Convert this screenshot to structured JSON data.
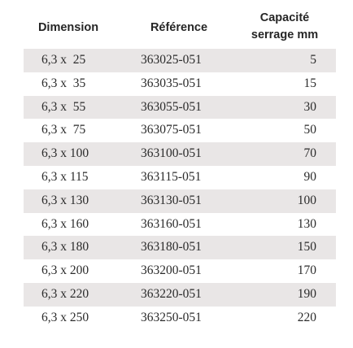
{
  "table": {
    "headers": {
      "dimension": "Dimension",
      "reference": "Référence",
      "capacity_line1": "Capacité",
      "capacity_line2": "serrage mm"
    },
    "rows": [
      {
        "dimension": "6,3 x  25",
        "reference": "363025-051",
        "capacity": "5"
      },
      {
        "dimension": "6,3 x  35",
        "reference": "363035-051",
        "capacity": "15"
      },
      {
        "dimension": "6,3 x  55",
        "reference": "363055-051",
        "capacity": "30"
      },
      {
        "dimension": "6,3 x  75",
        "reference": "363075-051",
        "capacity": "50"
      },
      {
        "dimension": "6,3 x 100",
        "reference": "363100-051",
        "capacity": "70"
      },
      {
        "dimension": "6,3 x 115",
        "reference": "363115-051",
        "capacity": "90"
      },
      {
        "dimension": "6,3 x 130",
        "reference": "363130-051",
        "capacity": "100"
      },
      {
        "dimension": "6,3 x 160",
        "reference": "363160-051",
        "capacity": "130"
      },
      {
        "dimension": "6,3 x 180",
        "reference": "363180-051",
        "capacity": "150"
      },
      {
        "dimension": "6,3 x 200",
        "reference": "363200-051",
        "capacity": "170"
      },
      {
        "dimension": "6,3 x 220",
        "reference": "363220-051",
        "capacity": "190"
      },
      {
        "dimension": "6,3 x 250",
        "reference": "363250-051",
        "capacity": "220"
      }
    ]
  },
  "colors": {
    "row_shade": "#e9e6e6",
    "text": "#2b2b2b"
  }
}
